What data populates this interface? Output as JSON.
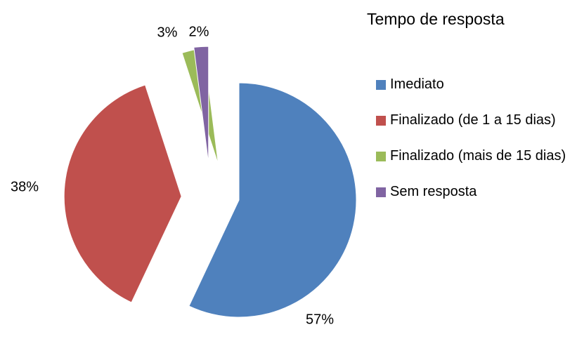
{
  "chart_data": {
    "type": "pie",
    "legend_title": "Tempo de resposta",
    "categories": [
      "Imediato",
      "Finalizado (de 1 a 15 dias)",
      "Finalizado (mais de 15 dias)",
      "Sem resposta"
    ],
    "values": [
      57,
      38,
      3,
      2
    ],
    "value_labels": [
      "57%",
      "38%",
      "3%",
      "2%"
    ],
    "colors": [
      "#4f81bd",
      "#c0504d",
      "#9bbb59",
      "#8064a2"
    ],
    "legend": "right"
  }
}
